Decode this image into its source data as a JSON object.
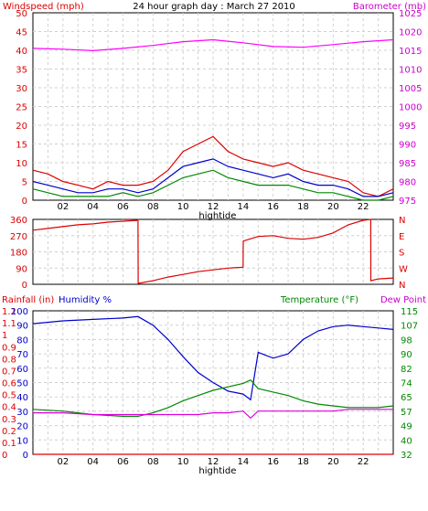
{
  "chart_data": [
    {
      "type": "line",
      "title": "24 hour graph day : March 27 2010",
      "left_axis_label": "Windspeed (mph)",
      "right_axis_label": "Barometer (mb)",
      "x_tick_labels": [
        "02",
        "04",
        "06",
        "08",
        "10",
        "12",
        "14",
        "16",
        "18",
        "20",
        "22"
      ],
      "x_marker_label": "hightide",
      "left_ticks": [
        "0",
        "5",
        "10",
        "15",
        "20",
        "25",
        "30",
        "35",
        "40",
        "45",
        "50"
      ],
      "right_ticks": [
        "975",
        "980",
        "985",
        "990",
        "995",
        "1000",
        "1005",
        "1010",
        "1015",
        "1020",
        "1025"
      ],
      "ylim_left": [
        0,
        50
      ],
      "ylim_right": [
        975,
        1025
      ],
      "series": [
        {
          "color": "#ff00ff",
          "axis": "right",
          "x": [
            0,
            2,
            4,
            6,
            8,
            10,
            12,
            14,
            16,
            18,
            20,
            22,
            24
          ],
          "values": [
            1015.5,
            1015.3,
            1014.9,
            1015.5,
            1016.3,
            1017.3,
            1017.8,
            1017.0,
            1016.0,
            1015.8,
            1016.5,
            1017.3,
            1017.8
          ]
        },
        {
          "color": "#dd0000",
          "axis": "left",
          "x": [
            0,
            1,
            2,
            3,
            4,
            5,
            6,
            7,
            8,
            9,
            10,
            11,
            12,
            13,
            14,
            15,
            16,
            17,
            18,
            19,
            20,
            21,
            22,
            23,
            24
          ],
          "values": [
            8,
            7,
            5,
            4,
            3,
            5,
            4,
            4,
            5,
            8,
            13,
            15,
            17,
            13,
            11,
            10,
            9,
            10,
            8,
            7,
            6,
            5,
            2,
            1,
            3
          ]
        },
        {
          "color": "#0000cc",
          "axis": "left",
          "x": [
            0,
            1,
            2,
            3,
            4,
            5,
            6,
            7,
            8,
            9,
            10,
            11,
            12,
            13,
            14,
            15,
            16,
            17,
            18,
            19,
            20,
            21,
            22,
            23,
            24
          ],
          "values": [
            5,
            4,
            3,
            2,
            2,
            3,
            3,
            2,
            3,
            6,
            9,
            10,
            11,
            9,
            8,
            7,
            6,
            7,
            5,
            4,
            4,
            3,
            1,
            1,
            2
          ]
        },
        {
          "color": "#008800",
          "axis": "left",
          "x": [
            0,
            1,
            2,
            3,
            4,
            5,
            6,
            7,
            8,
            9,
            10,
            11,
            12,
            13,
            14,
            15,
            16,
            17,
            18,
            19,
            20,
            21,
            22,
            23,
            24
          ],
          "values": [
            3,
            2,
            1,
            1,
            1,
            1,
            2,
            1,
            2,
            4,
            6,
            7,
            8,
            6,
            5,
            4,
            4,
            4,
            3,
            2,
            2,
            1,
            0,
            0,
            1
          ]
        }
      ]
    },
    {
      "type": "line",
      "left_ticks": [
        "0",
        "90",
        "180",
        "270",
        "360"
      ],
      "right_ticks": [
        "N",
        "W",
        "S",
        "E",
        "N"
      ],
      "ylim": [
        0,
        360
      ],
      "series": [
        {
          "color": "#dd0000",
          "name": "",
          "x": [
            0,
            1,
            2,
            3,
            4,
            5,
            6,
            7,
            7.01,
            8,
            9,
            10,
            11,
            12,
            13,
            14,
            14.01,
            15,
            16,
            17,
            18,
            19,
            20,
            21,
            22,
            22.5,
            22.51,
            23,
            24
          ],
          "values": [
            300,
            310,
            320,
            330,
            335,
            345,
            350,
            355,
            5,
            20,
            40,
            55,
            70,
            80,
            90,
            95,
            240,
            265,
            270,
            255,
            250,
            260,
            285,
            330,
            355,
            360,
            20,
            30,
            35
          ]
        }
      ]
    },
    {
      "type": "line",
      "left_axis_label_1": "Rainfall (in)",
      "left_axis_label_2": "Humidity %",
      "right_axis_label_1": "Temperature (°F)",
      "right_axis_label_2": "Dew Point",
      "rain_ticks": [
        "0",
        "0.1",
        "0.2",
        "0.3",
        "0.4",
        "0.5",
        "0.6",
        "0.7",
        "0.8",
        "0.9",
        "1",
        "1.1",
        "1.2"
      ],
      "humidity_ticks": [
        "0",
        "10",
        "20",
        "30",
        "40",
        "50",
        "60",
        "70",
        "80",
        "90",
        "100"
      ],
      "temp_ticks": [
        "32",
        "40",
        "49",
        "57",
        "65",
        "74",
        "82",
        "90",
        "98",
        "107",
        "115"
      ],
      "humidity_ylim": [
        0,
        100
      ],
      "temp_ylim": [
        32,
        115
      ],
      "x_tick_labels": [
        "02",
        "04",
        "06",
        "08",
        "10",
        "12",
        "14",
        "16",
        "18",
        "20",
        "22"
      ],
      "x_marker_label": "hightide",
      "series": [
        {
          "color": "#0000cc",
          "axis": "humidity",
          "x": [
            0,
            2,
            4,
            6,
            7,
            8,
            9,
            10,
            11,
            12,
            13,
            14,
            14.5,
            15,
            16,
            17,
            18,
            19,
            20,
            21,
            22,
            23,
            24
          ],
          "values": [
            91,
            93,
            94,
            95,
            96,
            90,
            80,
            68,
            57,
            50,
            44,
            42,
            38,
            71,
            67,
            70,
            80,
            86,
            89,
            90,
            89,
            88,
            87
          ]
        },
        {
          "color": "#008800",
          "axis": "temp",
          "x": [
            0,
            2,
            4,
            6,
            7,
            8,
            9,
            10,
            11,
            12,
            13,
            14,
            14.5,
            15,
            16,
            17,
            18,
            19,
            20,
            21,
            22,
            23,
            24
          ],
          "values": [
            58,
            57,
            55,
            54,
            54,
            56,
            59,
            63,
            66,
            69,
            71,
            73,
            75,
            70,
            68,
            66,
            63,
            61,
            60,
            59,
            59,
            59,
            60
          ]
        },
        {
          "color": "#dd00dd",
          "axis": "temp",
          "x": [
            0,
            2,
            4,
            6,
            7,
            8,
            9,
            10,
            11,
            12,
            13,
            14,
            14.5,
            15,
            16,
            17,
            18,
            19,
            20,
            21,
            22,
            23,
            24
          ],
          "values": [
            56,
            56,
            55,
            55,
            55,
            55,
            55,
            55,
            55,
            56,
            56,
            57,
            53,
            57,
            57,
            57,
            57,
            57,
            57,
            58,
            58,
            58,
            58
          ]
        },
        {
          "color": "#dd0000",
          "axis": "rain",
          "x": [
            0,
            24
          ],
          "values": [
            0,
            0
          ]
        }
      ]
    }
  ]
}
